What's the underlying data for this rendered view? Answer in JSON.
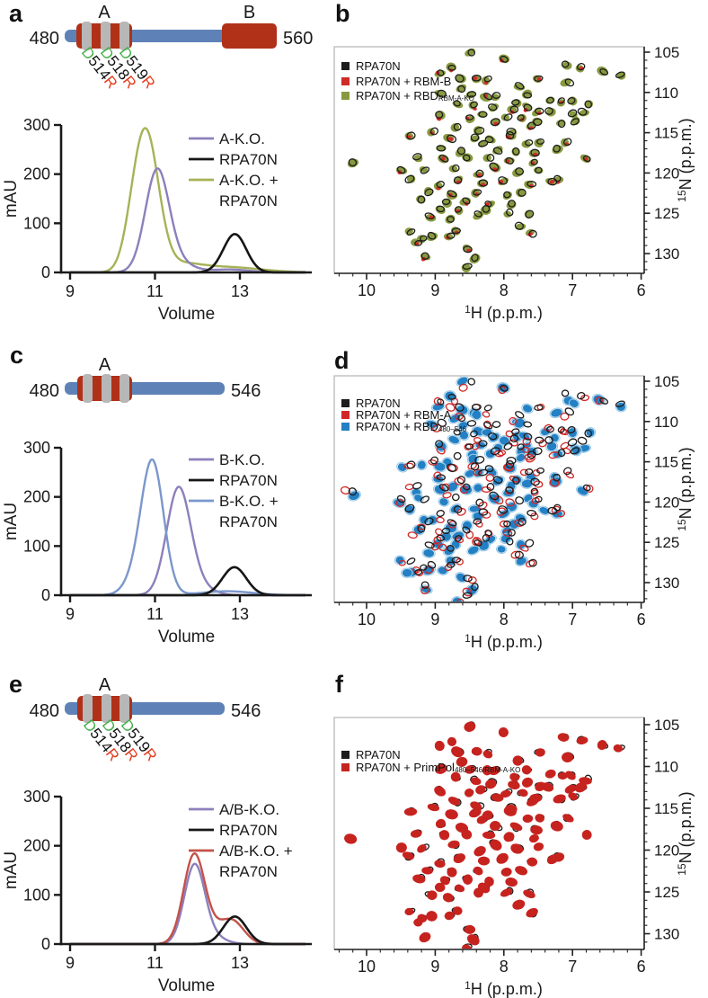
{
  "panels": {
    "a": {
      "letter": "a"
    },
    "b": {
      "letter": "b"
    },
    "c": {
      "letter": "c"
    },
    "d": {
      "letter": "d"
    },
    "e": {
      "letter": "e"
    },
    "f": {
      "letter": "f"
    }
  },
  "colors": {
    "domain_bar": "#5e82b8",
    "domain_block": "#b03118",
    "domain_stripe": "#b7b7b7",
    "mutation_green": "#44b04a",
    "mutation_red": "#e63c1e",
    "axis": "#1a1a1a",
    "box_border": "#b5b5b5"
  },
  "domains": {
    "a": {
      "start_label": "480",
      "end_label": "560",
      "block_a_label": "A",
      "block_b_label": "B",
      "mutations": [
        "D514R",
        "D518R",
        "D519R"
      ]
    },
    "c": {
      "start_label": "480",
      "end_label": "546",
      "block_a_label": "A",
      "mutations": []
    },
    "e": {
      "start_label": "480",
      "end_label": "546",
      "block_a_label": "A",
      "mutations": [
        "D514R",
        "D518R",
        "D519R"
      ]
    }
  },
  "chart_data": [
    {
      "id": "a_sec",
      "panel": "a",
      "type": "line",
      "xlabel": "Volume",
      "ylabel": "mAU",
      "xticks": [
        9,
        11,
        13
      ],
      "yticks": [
        0,
        100,
        200,
        300
      ],
      "xlim": [
        8.8,
        14.6
      ],
      "ylim": [
        0,
        300
      ],
      "series": [
        {
          "name": "A-K.O.",
          "color": "#8d80bb",
          "gaussians": [
            [
              11.05,
              205,
              0.28
            ],
            [
              11.55,
              18,
              0.35
            ],
            [
              12.75,
              6,
              0.45
            ]
          ]
        },
        {
          "name": "RPA70N",
          "color": "#161616",
          "gaussians": [
            [
              12.88,
              78,
              0.27
            ]
          ]
        },
        {
          "name": "A-K.O. + RPA70N",
          "color": "#a7b257",
          "gaussians": [
            [
              10.78,
              285,
              0.3
            ],
            [
              10.45,
              20,
              0.2
            ],
            [
              11.6,
              14,
              0.45
            ],
            [
              12.65,
              11,
              0.8
            ]
          ]
        }
      ],
      "draw_order": [
        2,
        0,
        1
      ],
      "legend": [
        {
          "series": 0,
          "lines": [
            "A-K.O."
          ]
        },
        {
          "series": 1,
          "lines": [
            "RPA70N"
          ]
        },
        {
          "series": 2,
          "lines": [
            "A-K.O. +",
            "RPA70N"
          ]
        }
      ]
    },
    {
      "id": "b_hsqc",
      "panel": "b",
      "type": "scatter",
      "xlabel": {
        "sup": "1",
        "text": "H (p.p.m.)"
      },
      "ylabel": {
        "sup": "15",
        "text": "N (p.p.m.)"
      },
      "xticks": [
        10,
        9,
        8,
        7,
        6
      ],
      "yticks": [
        105,
        110,
        115,
        120,
        125,
        130
      ],
      "xlim": [
        10.48,
        5.95
      ],
      "ylim": [
        104.3,
        132.5
      ],
      "x_minor_step": 0.2,
      "y_minor_step": 1,
      "peaks_ref": "nmr_peaks",
      "series": [
        {
          "name": "RPA70N",
          "color": "#1c1c1c",
          "style": "ring",
          "dx": 0,
          "dy": 0,
          "jx": 0.02,
          "jy": 0.1,
          "frac": 1,
          "z": 2
        },
        {
          "name": "RPA70N + RBM-B",
          "color": "#cf2b28",
          "style": "spot",
          "dx": 0.04,
          "dy": 0.2,
          "jx": 0.05,
          "jy": 0.3,
          "frac": 0.45,
          "z": 1
        },
        {
          "name": "RPA70N + RBD",
          "sub": "RBM-A-KO",
          "color": "#87993f",
          "style": "fill",
          "dx": 0.01,
          "dy": 0.05,
          "jx": 0.03,
          "jy": 0.15,
          "frac": 1,
          "z": 0
        }
      ]
    },
    {
      "id": "c_sec",
      "panel": "c",
      "type": "line",
      "xlabel": "Volume",
      "ylabel": "mAU",
      "xticks": [
        9,
        11,
        13
      ],
      "yticks": [
        0,
        100,
        200,
        300
      ],
      "xlim": [
        8.8,
        14.6
      ],
      "ylim": [
        0,
        300
      ],
      "series": [
        {
          "name": "B-K.O.",
          "color": "#8d80bb",
          "gaussians": [
            [
              11.55,
              210,
              0.28
            ],
            [
              11.95,
              20,
              0.35
            ]
          ]
        },
        {
          "name": "RPA70N",
          "color": "#161616",
          "gaussians": [
            [
              12.87,
              57,
              0.28
            ]
          ]
        },
        {
          "name": "B-K.O. + RPA70N",
          "color": "#7b97cb",
          "gaussians": [
            [
              10.95,
              258,
              0.26
            ],
            [
              10.6,
              38,
              0.28
            ],
            [
              12.7,
              8,
              0.6
            ]
          ]
        }
      ],
      "draw_order": [
        0,
        2,
        1
      ],
      "legend": [
        {
          "series": 0,
          "lines": [
            "B-K.O."
          ]
        },
        {
          "series": 1,
          "lines": [
            "RPA70N"
          ]
        },
        {
          "series": 2,
          "lines": [
            "B-K.O. +",
            "RPA70N"
          ]
        }
      ]
    },
    {
      "id": "d_hsqc",
      "panel": "d",
      "type": "scatter",
      "xlabel": {
        "sup": "1",
        "text": "H (p.p.m.)"
      },
      "ylabel": {
        "sup": "15",
        "text": "N (p.p.m.)"
      },
      "xticks": [
        10,
        9,
        8,
        7,
        6
      ],
      "yticks": [
        105,
        110,
        115,
        120,
        125,
        130
      ],
      "xlim": [
        10.48,
        5.95
      ],
      "ylim": [
        104.3,
        132.5
      ],
      "x_minor_step": 0.2,
      "y_minor_step": 1,
      "peaks_ref": "nmr_peaks",
      "series": [
        {
          "name": "RPA70N",
          "color": "#1c1c1c",
          "style": "ring",
          "dx": 0,
          "dy": 0,
          "jx": 0.02,
          "jy": 0.1,
          "frac": 1,
          "z": 2
        },
        {
          "name": "RPA70N + RBM-A",
          "color": "#d32726",
          "style": "ring",
          "dx": 0.05,
          "dy": 0.3,
          "jx": 0.12,
          "jy": 0.55,
          "frac": 0.85,
          "z": 1
        },
        {
          "name": "RPA70N + RBD",
          "sub": "480–546",
          "color": "#2380c4",
          "style": "fill",
          "halo": "#9ccae6",
          "dx": 0.07,
          "dy": 0.4,
          "jx": 0.12,
          "jy": 0.6,
          "frac": 1,
          "z": 0
        }
      ]
    },
    {
      "id": "e_sec",
      "panel": "e",
      "type": "line",
      "xlabel": "Volume",
      "ylabel": "mAU",
      "xticks": [
        9,
        11,
        13
      ],
      "yticks": [
        0,
        100,
        200,
        300
      ],
      "xlim": [
        8.8,
        14.6
      ],
      "ylim": [
        0,
        300
      ],
      "series": [
        {
          "name": "A/B-K.O.",
          "color": "#8d80bb",
          "gaussians": [
            [
              11.93,
              158,
              0.24
            ],
            [
              12.35,
              14,
              0.3
            ]
          ]
        },
        {
          "name": "RPA70N",
          "color": "#161616",
          "gaussians": [
            [
              12.88,
              56,
              0.27
            ]
          ]
        },
        {
          "name": "A/B-K.O. + RPA70N",
          "color": "#c3524a",
          "gaussians": [
            [
              11.92,
              178,
              0.25
            ],
            [
              12.4,
              22,
              0.3
            ],
            [
              12.84,
              42,
              0.27
            ]
          ]
        }
      ],
      "draw_order": [
        0,
        2,
        1
      ],
      "legend": [
        {
          "series": 0,
          "lines": [
            "A/B-K.O."
          ]
        },
        {
          "series": 1,
          "lines": [
            "RPA70N"
          ]
        },
        {
          "series": 2,
          "lines": [
            "A/B-K.O. +",
            "RPA70N"
          ]
        }
      ]
    },
    {
      "id": "f_hsqc",
      "panel": "f",
      "type": "scatter",
      "xlabel": {
        "sup": "1",
        "text": "H (p.p.m.)"
      },
      "ylabel": {
        "sup": "15",
        "text": "N (p.p.m.)"
      },
      "xticks": [
        10,
        9,
        8,
        7,
        6
      ],
      "yticks": [
        105,
        110,
        115,
        120,
        125,
        130
      ],
      "xlim": [
        10.48,
        5.95
      ],
      "ylim": [
        104.3,
        132.5
      ],
      "x_minor_step": 0.2,
      "y_minor_step": 1,
      "peaks_ref": "nmr_peaks",
      "series": [
        {
          "name": "RPA70N",
          "color": "#1c1c1c",
          "style": "ring",
          "dx": 0,
          "dy": 0,
          "jx": 0.02,
          "jy": 0.12,
          "frac": 1,
          "z": 0
        },
        {
          "name": "RPA70N + PrimPol",
          "sub": "480–546/RBM-A-KO",
          "color": "#c6231f",
          "style": "fill",
          "scale": 1.15,
          "dx": 0.01,
          "dy": 0.05,
          "jx": 0.03,
          "jy": 0.12,
          "frac": 1,
          "z": 1
        }
      ]
    }
  ],
  "nmr_peaks": [
    [
      8.43,
      105.4
    ],
    [
      8.05,
      105.9
    ],
    [
      7.06,
      106.3
    ],
    [
      6.86,
      106.7
    ],
    [
      8.74,
      106.9
    ],
    [
      6.55,
      107.2
    ],
    [
      6.24,
      107.8
    ],
    [
      8.88,
      107.4
    ],
    [
      8.61,
      108.2
    ],
    [
      8.34,
      108.0
    ],
    [
      8.2,
      108.7
    ],
    [
      7.76,
      108.9
    ],
    [
      7.51,
      108.4
    ],
    [
      8.55,
      109.3
    ],
    [
      7.11,
      109.0
    ],
    [
      8.86,
      110.5
    ],
    [
      8.5,
      110.2
    ],
    [
      8.3,
      110.8
    ],
    [
      8.05,
      110.4
    ],
    [
      7.86,
      110.9
    ],
    [
      7.61,
      110.3
    ],
    [
      7.36,
      110.7
    ],
    [
      7.16,
      111.2
    ],
    [
      6.96,
      110.9
    ],
    [
      6.81,
      111.6
    ],
    [
      8.66,
      111.4
    ],
    [
      8.41,
      111.9
    ],
    [
      8.16,
      111.7
    ],
    [
      7.91,
      112.2
    ],
    [
      7.71,
      111.9
    ],
    [
      7.51,
      112.4
    ],
    [
      7.31,
      112.0
    ],
    [
      7.06,
      112.6
    ],
    [
      6.86,
      112.3
    ],
    [
      8.91,
      112.8
    ],
    [
      8.56,
      113.1
    ],
    [
      8.26,
      112.9
    ],
    [
      8.01,
      113.4
    ],
    [
      7.76,
      113.2
    ],
    [
      7.46,
      113.6
    ],
    [
      7.21,
      113.9
    ],
    [
      6.96,
      113.5
    ],
    [
      8.71,
      114.2
    ],
    [
      8.36,
      114.5
    ],
    [
      8.11,
      114.0
    ],
    [
      7.86,
      114.6
    ],
    [
      7.56,
      114.3
    ],
    [
      9.36,
      115.6
    ],
    [
      9.06,
      115.2
    ],
    [
      8.76,
      115.8
    ],
    [
      8.46,
      115.4
    ],
    [
      8.21,
      115.9
    ],
    [
      7.96,
      115.5
    ],
    [
      7.66,
      116.1
    ],
    [
      7.41,
      115.8
    ],
    [
      7.11,
      116.4
    ],
    [
      8.96,
      116.8
    ],
    [
      8.61,
      117.1
    ],
    [
      8.31,
      116.7
    ],
    [
      8.06,
      117.3
    ],
    [
      7.81,
      117.0
    ],
    [
      7.51,
      117.5
    ],
    [
      7.26,
      117.2
    ],
    [
      9.21,
      118.0
    ],
    [
      8.86,
      118.3
    ],
    [
      8.51,
      118.1
    ],
    [
      8.16,
      118.5
    ],
    [
      7.91,
      118.2
    ],
    [
      7.61,
      118.7
    ],
    [
      10.21,
      118.9
    ],
    [
      6.76,
      118.4
    ],
    [
      9.46,
      119.5
    ],
    [
      9.11,
      119.8
    ],
    [
      8.76,
      119.4
    ],
    [
      8.41,
      119.9
    ],
    [
      8.11,
      119.6
    ],
    [
      7.81,
      120.1
    ],
    [
      7.46,
      119.8
    ],
    [
      7.16,
      120.4
    ],
    [
      9.31,
      120.9
    ],
    [
      8.96,
      121.2
    ],
    [
      8.61,
      120.8
    ],
    [
      8.26,
      121.4
    ],
    [
      7.96,
      121.1
    ],
    [
      7.66,
      121.6
    ],
    [
      7.36,
      121.3
    ],
    [
      9.06,
      122.2
    ],
    [
      8.71,
      122.5
    ],
    [
      8.36,
      122.1
    ],
    [
      8.01,
      122.7
    ],
    [
      7.71,
      122.4
    ],
    [
      9.21,
      123.4
    ],
    [
      8.86,
      123.8
    ],
    [
      8.51,
      123.5
    ],
    [
      8.16,
      124.0
    ],
    [
      7.86,
      123.7
    ],
    [
      8.96,
      124.6
    ],
    [
      8.61,
      124.9
    ],
    [
      8.26,
      124.5
    ],
    [
      7.96,
      125.1
    ],
    [
      7.56,
      124.8
    ],
    [
      9.11,
      125.6
    ],
    [
      8.76,
      125.9
    ],
    [
      8.41,
      125.5
    ],
    [
      7.76,
      126.2
    ],
    [
      9.36,
      127.2
    ],
    [
      9.06,
      127.6
    ],
    [
      8.71,
      127.3
    ],
    [
      8.76,
      128.0
    ],
    [
      9.16,
      128.3
    ],
    [
      7.61,
      127.8
    ],
    [
      9.31,
      128.9
    ],
    [
      8.56,
      129.3
    ],
    [
      9.11,
      130.2
    ],
    [
      8.46,
      130.6
    ],
    [
      8.51,
      131.4
    ]
  ]
}
